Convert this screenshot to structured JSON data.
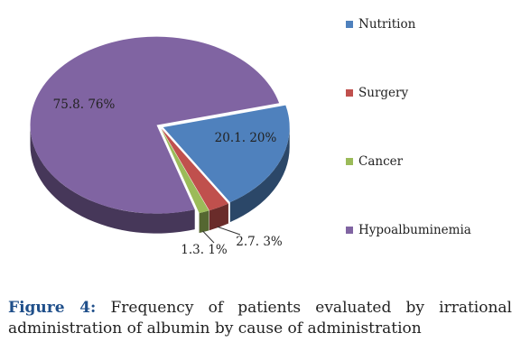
{
  "chart_data": {
    "type": "pie",
    "title": "",
    "slices": [
      {
        "name": "Nutrition",
        "value": 20.1,
        "label": "20.1. 20%",
        "color": "#4f81bd"
      },
      {
        "name": "Surgery",
        "value": 2.7,
        "label": "2.7. 3%",
        "color": "#c0504d"
      },
      {
        "name": "Cancer",
        "value": 1.3,
        "label": "1.3. 1%",
        "color": "#9bbb59"
      },
      {
        "name": "Hypoalbuminemia",
        "value": 75.8,
        "label": "75.8. 76%",
        "color": "#8064a2"
      }
    ],
    "legend_position": "right",
    "style": "3d-exploded"
  },
  "caption": {
    "label": "Figure 4:",
    "text": "Frequency of patients evaluated by irrational administration of albumin by cause of administration"
  }
}
